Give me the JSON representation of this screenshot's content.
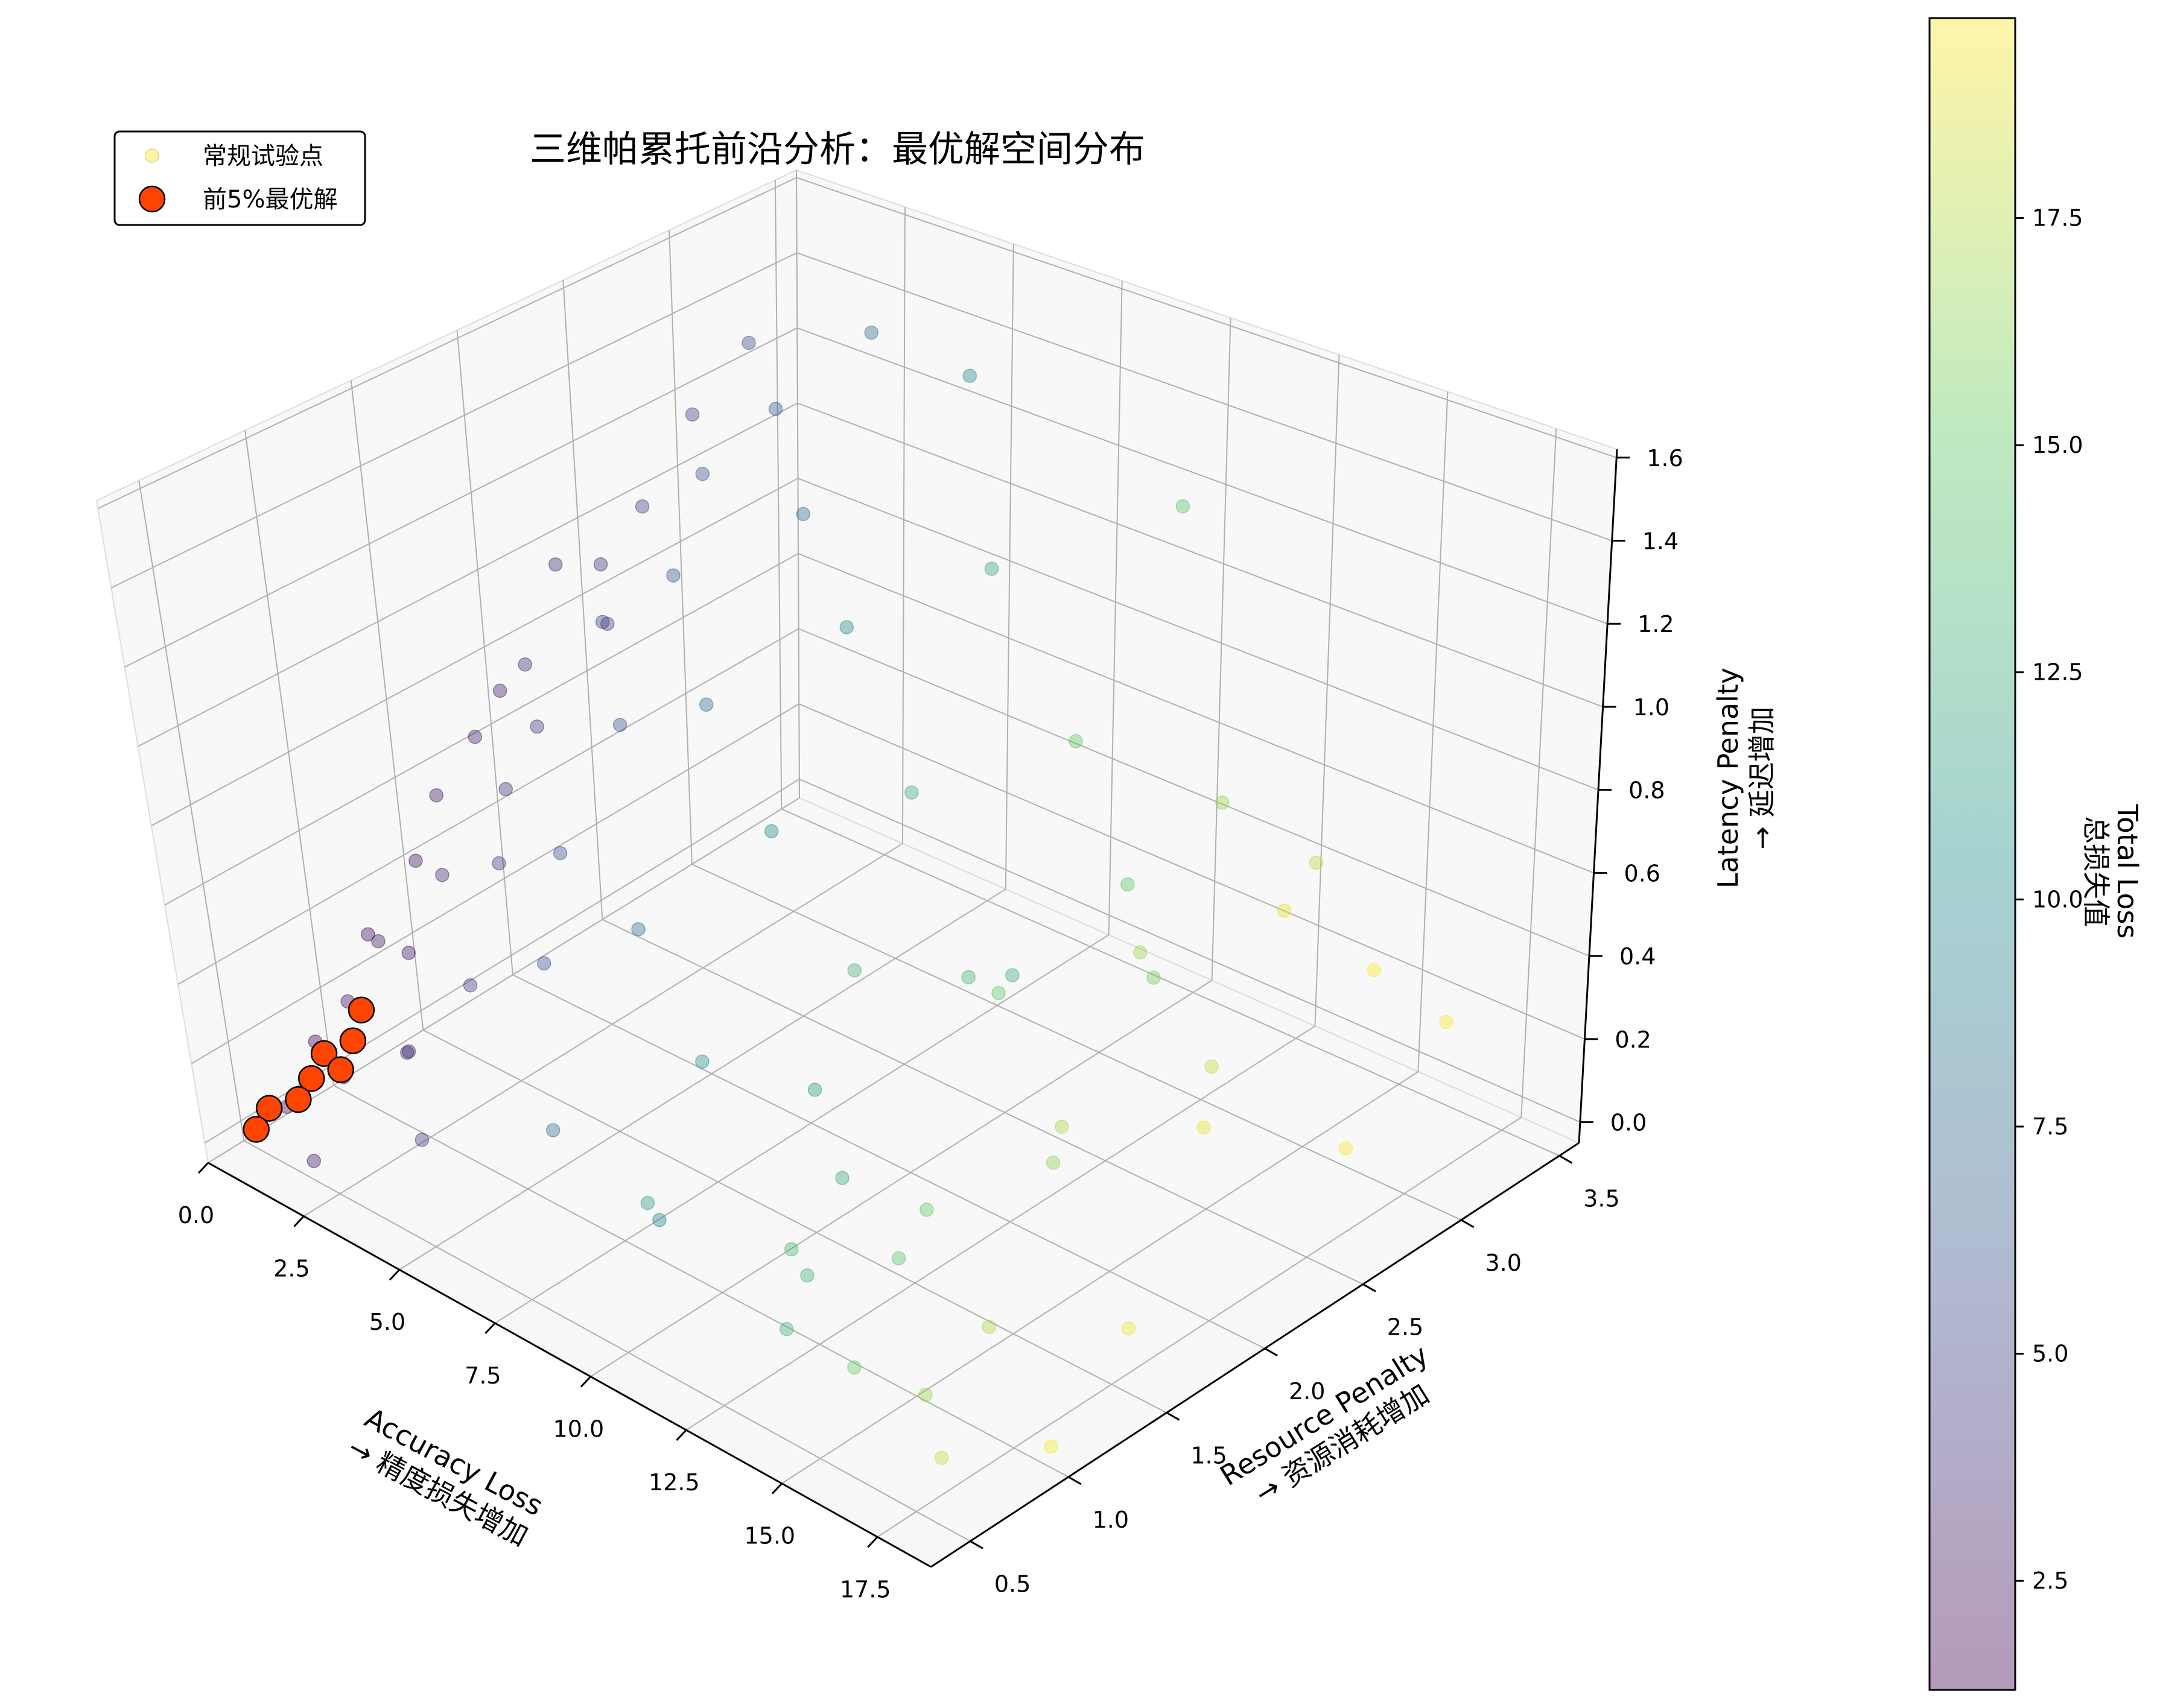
{
  "chart_data": {
    "type": "scatter3d",
    "title": "三维帕累托前沿分析：最优解空间分布",
    "xlabel": [
      "Accuracy Loss",
      "→ 精度损失增加"
    ],
    "ylabel": [
      "Resource Penalty",
      "→ 资源消耗增加"
    ],
    "zlabel": [
      "Latency Penalty",
      "→ 延迟增加"
    ],
    "xlim": [
      0,
      18.9
    ],
    "ylim": [
      0.3,
      3.6
    ],
    "zlim": [
      -0.05,
      1.62
    ],
    "xticks": [
      "0.0",
      "2.5",
      "5.0",
      "7.5",
      "10.0",
      "12.5",
      "15.0",
      "17.5"
    ],
    "yticks": [
      "0.5",
      "1.0",
      "1.5",
      "2.0",
      "2.5",
      "3.0",
      "3.5"
    ],
    "zticks": [
      "0.0",
      "0.2",
      "0.4",
      "0.6",
      "0.8",
      "1.0",
      "1.2",
      "1.4",
      "1.6"
    ],
    "colorbar": {
      "label": [
        "Total Loss",
        "总损失值"
      ],
      "range": [
        1.3,
        19.7
      ],
      "ticks": [
        "2.5",
        "5.0",
        "7.5",
        "10.0",
        "12.5",
        "15.0",
        "17.5"
      ],
      "colormap": "viridis",
      "alpha": 0.4
    },
    "legend": {
      "position": "top-left",
      "entries": [
        "常规试验点",
        "前5%最优解"
      ]
    },
    "series": [
      {
        "name": "常规试验点",
        "color_by": "total_loss",
        "points": [
          [
            0.3,
            1.5,
            0.4
          ],
          [
            0.5,
            1.6,
            0.55
          ],
          [
            0.4,
            1.2,
            0.3
          ],
          [
            0.7,
            1.0,
            0.2
          ],
          [
            0.2,
            0.9,
            0.1
          ],
          [
            0.6,
            1.8,
            0.65
          ],
          [
            0.9,
            1.3,
            0.25
          ],
          [
            1.0,
            2.0,
            0.8
          ],
          [
            1.2,
            1.1,
            0.35
          ],
          [
            0.8,
            0.6,
            0.05
          ],
          [
            1.5,
            1.4,
            0.45
          ],
          [
            1.8,
            1.7,
            0.6
          ],
          [
            2.0,
            2.2,
            0.9
          ],
          [
            2.2,
            1.0,
            0.15
          ],
          [
            2.5,
            1.5,
            0.5
          ],
          [
            1.1,
            2.6,
            1.05
          ],
          [
            1.4,
            0.8,
            0.1
          ],
          [
            1.7,
            1.9,
            0.7
          ],
          [
            2.8,
            2.4,
            1.0
          ],
          [
            3.0,
            1.2,
            0.3
          ],
          [
            0.4,
            2.3,
            0.95
          ],
          [
            0.9,
            2.9,
            1.2
          ],
          [
            1.3,
            3.1,
            1.35
          ],
          [
            2.1,
            2.7,
            1.15
          ],
          [
            3.3,
            2.0,
            0.75
          ],
          [
            3.6,
            1.6,
            0.55
          ],
          [
            4.0,
            2.8,
            1.1
          ],
          [
            4.5,
            1.3,
            0.4
          ],
          [
            5.0,
            2.1,
            0.85
          ],
          [
            0.6,
            0.7,
            0.02
          ],
          [
            1.9,
            0.5,
            0.0
          ],
          [
            2.7,
            0.9,
            0.2
          ],
          [
            3.9,
            0.7,
            0.1
          ],
          [
            0.3,
            2.0,
            0.7
          ],
          [
            0.5,
            2.5,
            0.9
          ],
          [
            1.6,
            2.3,
            0.85
          ],
          [
            2.4,
            3.0,
            1.25
          ],
          [
            3.2,
            3.3,
            1.4
          ],
          [
            6.0,
            1.5,
            0.5
          ],
          [
            6.5,
            2.5,
            1.0
          ],
          [
            7.0,
            0.8,
            0.25
          ],
          [
            7.5,
            1.9,
            0.7
          ],
          [
            8.0,
            2.9,
            1.1
          ],
          [
            5.5,
            3.3,
            1.38
          ],
          [
            9.0,
            1.2,
            0.4
          ],
          [
            9.5,
            2.2,
            0.8
          ],
          [
            10.0,
            3.4,
            1.2
          ],
          [
            10.5,
            0.6,
            0.3
          ],
          [
            11.0,
            1.6,
            0.6
          ],
          [
            11.5,
            2.6,
            0.9
          ],
          [
            12.0,
            1.0,
            0.15
          ],
          [
            12.5,
            2.0,
            0.5
          ],
          [
            13.0,
            3.0,
            0.7
          ],
          [
            13.5,
            1.4,
            0.2
          ],
          [
            14.0,
            2.4,
            0.55
          ],
          [
            14.5,
            0.8,
            0.05
          ],
          [
            15.0,
            1.8,
            0.35
          ],
          [
            15.5,
            2.8,
            0.6
          ],
          [
            16.0,
            1.2,
            0.1
          ],
          [
            16.5,
            2.2,
            0.3
          ],
          [
            17.0,
            3.3,
            0.25
          ],
          [
            17.5,
            1.6,
            0.05
          ],
          [
            18.0,
            2.6,
            0.2
          ],
          [
            18.5,
            1.0,
            0.0
          ],
          [
            8.5,
            1.0,
            0.05
          ],
          [
            9.2,
            1.7,
            0.2
          ],
          [
            10.2,
            2.3,
            0.35
          ],
          [
            11.2,
            2.9,
            0.45
          ],
          [
            12.2,
            0.9,
            0.0
          ],
          [
            13.2,
            1.3,
            0.1
          ],
          [
            14.2,
            1.9,
            0.2
          ],
          [
            15.2,
            2.5,
            0.3
          ],
          [
            16.2,
            3.1,
            0.4
          ],
          [
            17.2,
            0.7,
            0.0
          ],
          [
            12.8,
            2.7,
            0.35
          ],
          [
            11.8,
            1.1,
            0.05
          ],
          [
            10.8,
            1.5,
            0.12
          ],
          [
            9.8,
            2.6,
            0.25
          ],
          [
            13.8,
            3.3,
            0.5
          ],
          [
            15.8,
            0.9,
            0.02
          ]
        ]
      },
      {
        "name": "前5%最优解",
        "color": "#FF4500",
        "points": [
          [
            0.3,
            0.6,
            0.02
          ],
          [
            0.5,
            0.8,
            0.05
          ],
          [
            0.4,
            0.9,
            0.08
          ],
          [
            0.6,
            0.7,
            0.03
          ],
          [
            0.8,
            0.9,
            0.06
          ],
          [
            0.7,
            1.0,
            0.1
          ],
          [
            0.5,
            1.1,
            0.14
          ],
          [
            0.4,
            0.5,
            0.0
          ]
        ]
      }
    ]
  }
}
